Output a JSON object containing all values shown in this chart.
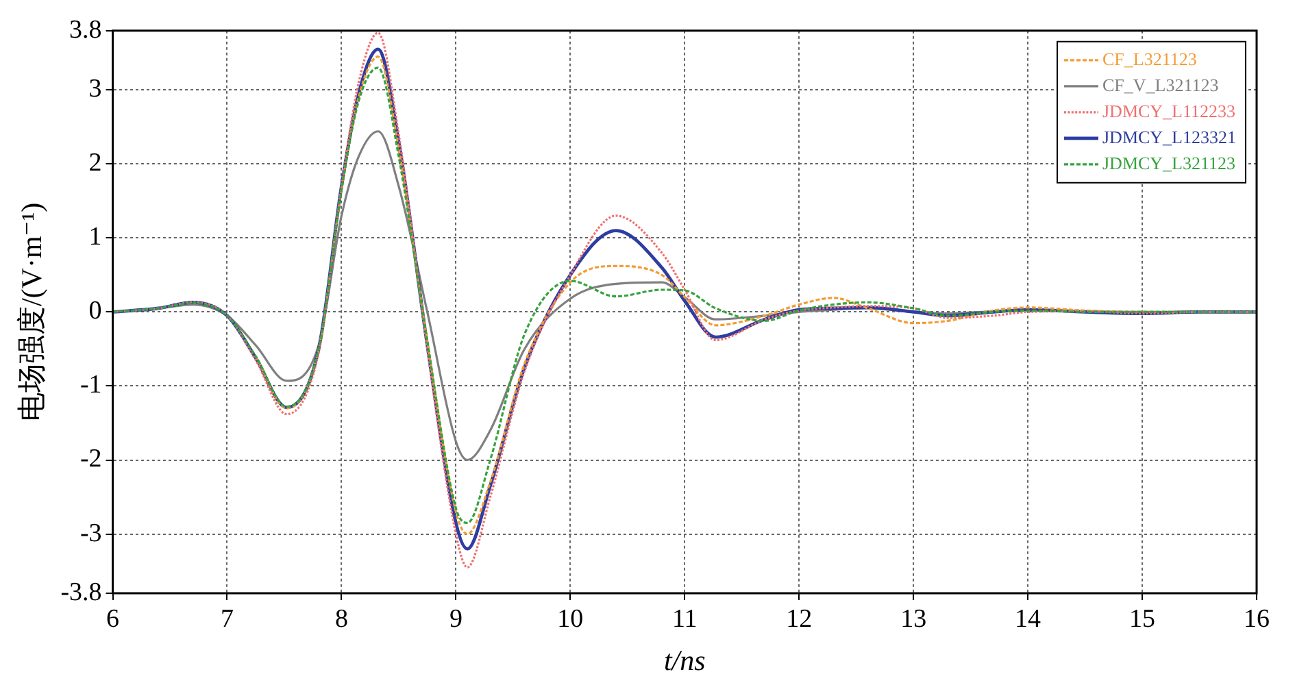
{
  "chart_data": {
    "type": "line",
    "xlabel": "t/ns",
    "ylabel": "电场强度/(V·m⁻¹)",
    "xlim": [
      6,
      16
    ],
    "xticks": [
      6,
      7,
      8,
      9,
      10,
      11,
      12,
      13,
      14,
      15,
      16
    ],
    "ylim": [
      -3.8,
      3.8
    ],
    "yticks": [
      -3.8,
      -3,
      -2,
      -1,
      0,
      1,
      2,
      3,
      3.8
    ],
    "grid": true,
    "legend": "top right",
    "marker": "none",
    "x": [
      6,
      6.4,
      6.7,
      7,
      7.25,
      7.52,
      7.8,
      8,
      8.15,
      8.32,
      8.5,
      8.75,
      9,
      9.1,
      9.3,
      9.6,
      10,
      10.4,
      10.8,
      11,
      11.27,
      11.7,
      12,
      12.3,
      12.6,
      13,
      13.3,
      13.7,
      14,
      14.5,
      15,
      15.5,
      16
    ],
    "series": [
      {
        "name": "CF_L321123",
        "color": "#f39c34",
        "line_style": "dashed",
        "values": [
          null,
          null,
          null,
          null,
          -0.6,
          -1.3,
          -0.5,
          1.65,
          2.9,
          3.45,
          2.2,
          -0.4,
          -2.7,
          -3.0,
          -2.3,
          -0.7,
          0.4,
          0.62,
          0.5,
          0.2,
          -0.18,
          -0.05,
          0.1,
          0.19,
          0.05,
          -0.15,
          -0.12,
          0.02,
          0.06,
          0.02,
          0,
          0,
          0
        ]
      },
      {
        "name": "CF_V_L321123",
        "color": "#7f7f7f",
        "line_style": "solid",
        "values": [
          0,
          0.05,
          0.1,
          -0.05,
          -0.45,
          -0.93,
          -0.45,
          1.3,
          2.1,
          2.44,
          1.7,
          0,
          -1.75,
          -2.0,
          -1.6,
          -0.5,
          0.18,
          0.38,
          0.4,
          0.2,
          -0.1,
          -0.05,
          0,
          0.03,
          0.05,
          0,
          -0.02,
          0.01,
          0.03,
          0.01,
          0,
          0,
          0
        ]
      },
      {
        "name": "JDMCY_L112233",
        "color": "#f07070",
        "line_style": "dotted",
        "values": [
          0,
          0.05,
          0.13,
          -0.05,
          -0.65,
          -1.38,
          -0.55,
          1.7,
          3.1,
          3.77,
          2.4,
          -0.5,
          -3.0,
          -3.45,
          -2.5,
          -0.8,
          0.5,
          1.3,
          0.8,
          0.3,
          -0.38,
          -0.1,
          0.02,
          0.06,
          0.08,
          0.05,
          -0.08,
          -0.05,
          0,
          0.01,
          -0.02,
          0,
          0
        ]
      },
      {
        "name": "JDMCY_L123321",
        "color": "#2e3da0",
        "line_style": "solid",
        "values": [
          0,
          0.05,
          0.13,
          -0.05,
          -0.62,
          -1.29,
          -0.5,
          1.7,
          2.95,
          3.55,
          2.3,
          -0.45,
          -2.85,
          -3.2,
          -2.35,
          -0.75,
          0.5,
          1.1,
          0.6,
          0.15,
          -0.34,
          -0.1,
          0.03,
          0.05,
          0.06,
          0,
          -0.05,
          0,
          0.03,
          0,
          -0.02,
          0,
          0
        ]
      },
      {
        "name": "JDMCY_L321123",
        "color": "#35a33e",
        "line_style": "dashed",
        "values": [
          0,
          0.05,
          0.12,
          -0.05,
          -0.6,
          -1.28,
          -0.5,
          1.65,
          2.85,
          3.3,
          2.1,
          -0.4,
          -2.65,
          -2.85,
          -2.0,
          -0.3,
          0.42,
          0.21,
          0.3,
          0.29,
          0.05,
          -0.12,
          0.02,
          0.1,
          0.13,
          0.05,
          -0.05,
          0,
          0.02,
          0,
          0,
          0,
          0
        ]
      }
    ]
  }
}
